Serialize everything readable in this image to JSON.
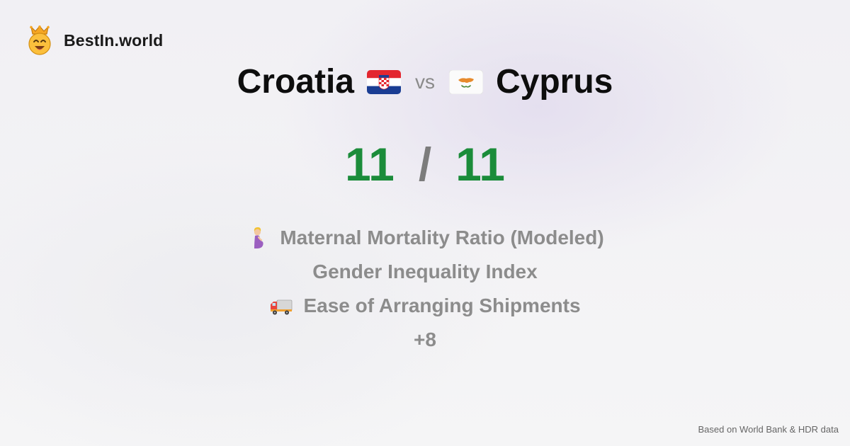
{
  "brand": {
    "name": "BestIn.world",
    "logo_icon": "crowned-smiley-icon"
  },
  "comparison": {
    "left_country": "Croatia",
    "left_flag_icon": "croatia-flag-icon",
    "vs_label": "vs",
    "right_country": "Cyprus",
    "right_flag_icon": "cyprus-flag-icon"
  },
  "score": {
    "left": "11",
    "separator": "/",
    "right": "11"
  },
  "metrics": [
    {
      "icon": "pregnant-woman-icon",
      "label": "Maternal Mortality Ratio (Modeled)"
    },
    {
      "icon": "",
      "label": "Gender Inequality Index"
    },
    {
      "icon": "delivery-truck-icon",
      "label": "Ease of Arranging Shipments"
    }
  ],
  "more_label": "+8",
  "footer": {
    "source": "Based on World Bank & HDR data"
  },
  "colors": {
    "score_green": "#1b8c3a",
    "muted_gray": "#8c8c8c",
    "background": "#f3f2f5"
  }
}
